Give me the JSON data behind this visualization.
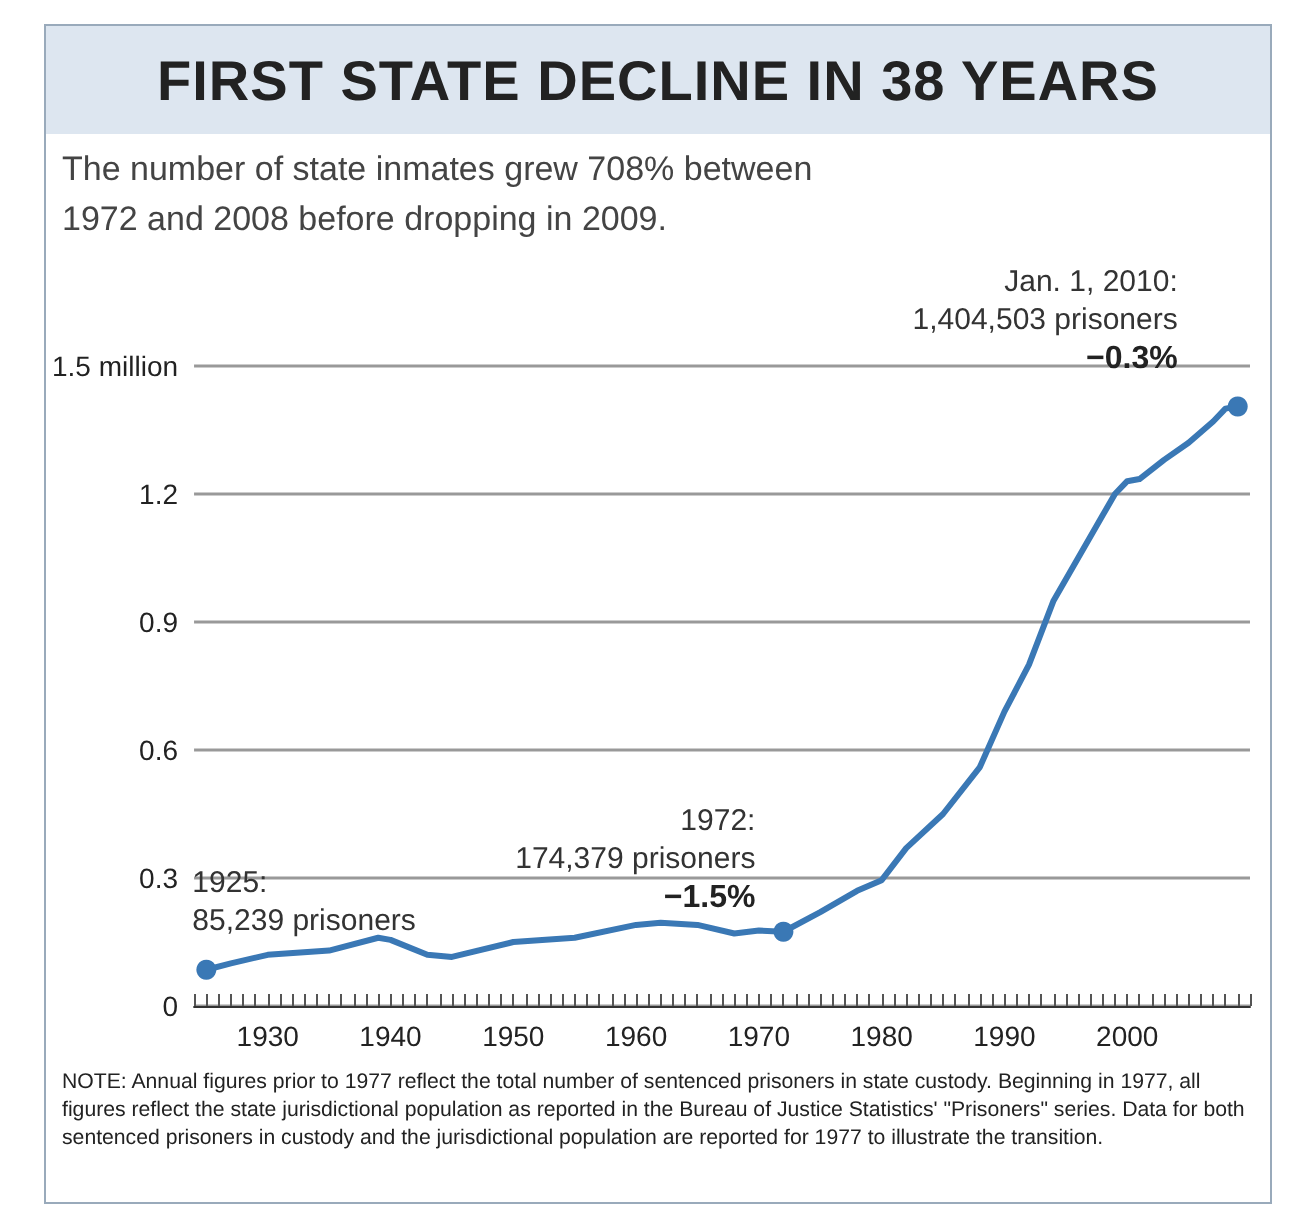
{
  "chart_data": {
    "type": "line",
    "title": "FIRST STATE DECLINE IN 38 YEARS",
    "subtitle": "The number of state inmates grew 708% between\n1972 and 2008 before dropping in 2009.",
    "x": [
      1925,
      1927,
      1930,
      1935,
      1939,
      1940,
      1943,
      1945,
      1950,
      1955,
      1960,
      1962,
      1965,
      1968,
      1970,
      1972,
      1975,
      1978,
      1980,
      1982,
      1985,
      1988,
      1990,
      1992,
      1994,
      1996,
      1998,
      1999,
      2000,
      2001,
      2003,
      2005,
      2007,
      2008,
      2009
    ],
    "series": [
      {
        "color": "#3a78b5",
        "values": [
          0.085,
          0.1,
          0.12,
          0.13,
          0.16,
          0.155,
          0.12,
          0.115,
          0.15,
          0.16,
          0.19,
          0.195,
          0.19,
          0.17,
          0.177,
          0.174,
          0.22,
          0.27,
          0.295,
          0.37,
          0.45,
          0.56,
          0.69,
          0.8,
          0.95,
          1.05,
          1.15,
          1.2,
          1.23,
          1.235,
          1.28,
          1.32,
          1.37,
          1.4,
          1.405
        ]
      }
    ],
    "xlim": [
      1924,
      2010
    ],
    "xticks": [
      1930,
      1940,
      1950,
      1960,
      1970,
      1980,
      1990,
      2000
    ],
    "ylim": [
      0,
      1.5
    ],
    "yticks": [
      0,
      0.3,
      0.6,
      0.9,
      1.2,
      {
        "value": 1.5,
        "label": "1.5 million"
      }
    ],
    "grid": "y",
    "marker": "none",
    "line_style": "solid",
    "annotations": [
      {
        "text": "1925:\n85,239 prisoners",
        "x": 1925,
        "y": 0.085
      },
      {
        "text": "1972:\n174,379 prisoners\n−1.5%",
        "x": 1972,
        "y": 0.174
      },
      {
        "text": "Jan. 1, 2010:\n1,404,503 prisoners\n−0.3%",
        "x": 2009,
        "y": 1.405
      },
      "NOTE: Annual figures prior to 1977 reflect the total number of sentenced prisoners in state custody.  Beginning in 1977, all figures reflect the state jurisdictional population as reported in the Bureau of Justice Statistics' \"Prisoners\" series.  Data for both sentenced prisoners in custody and the jurisdictional population are reported for 1977 to illustrate the transition."
    ]
  }
}
